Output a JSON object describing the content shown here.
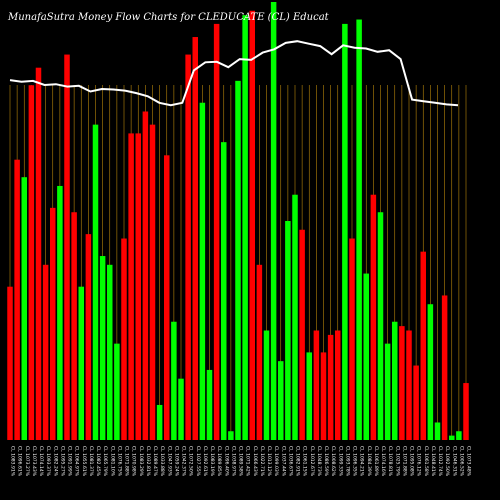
{
  "chart_data": {
    "type": "bar",
    "title": "MunafaSutra  Money Flow  Charts for CLEDUCATE                  (CL) Educat",
    "bar_colors": {
      "up": "#00ff00",
      "down": "#ff0000"
    },
    "line_color": "#ffffff",
    "gridline_color": "#b8860b",
    "background": "#000000",
    "ylim": [
      0,
      100
    ],
    "grid": "vertical",
    "categories": [
      "CL 1083.91%",
      "CL 1096.61%",
      "CL 1073.27%",
      "CL 1073.43%",
      "CL 1074.14%",
      "CL 1093.37%",
      "CL 1082.24%",
      "CL 1095.27%",
      "CL 1091.99%",
      "CL 1064.97%",
      "CL 1055.61%",
      "CL 1081.37%",
      "CL 1082.45%",
      "CL 1065.79%",
      "CL 1081.10%",
      "CL 1076.75%",
      "CL 1071.88%",
      "CL 1070.98%",
      "CL 1083.29%",
      "CL 1032.81%",
      "CL 1089.47%",
      "CL 1033.88%",
      "CL 1047.93%",
      "CL 1059.24%",
      "CL 1042.37%",
      "CL 1072.50%",
      "CL 1027.55%",
      "CL 1092.61%",
      "CL 1083.19%",
      "CL 1089.85%",
      "CL 1096.40%",
      "CL 1038.97%",
      "CL 1089.58%",
      "CL 1071.42%",
      "CL 1066.43%",
      "CL 1022.71%",
      "CL 1013.12%",
      "CL 1099.03%",
      "CL 1037.44%",
      "CL 1036.67%",
      "CL 1082.91%",
      "CL 1061.15%",
      "CL 1012.67%",
      "CL 1048.73%",
      "CL 1086.59%",
      "CL 1008.62%",
      "CL 1099.33%",
      "CL 1093.78%",
      "CL 1096.35%",
      "CL 1094.21%",
      "CL 1084.39%",
      "CL 1061.89%",
      "CL 1074.16%",
      "CL 1078.81%",
      "CL 1025.79%",
      "CL 1071.88%",
      "CL 1095.08%",
      "CL 1076.12%",
      "CL 1061.58%",
      "CL 1048.41%",
      "CL 1012.74%",
      "CL 1092.50%",
      "CL 1046.31%",
      "CL 1006.52%",
      "CL 1073.48%"
    ],
    "series": [
      {
        "values": [
          35,
          64,
          60,
          81,
          85,
          40,
          53,
          58,
          88,
          52,
          35,
          47,
          72,
          42,
          40,
          22,
          46,
          70,
          70,
          75,
          72,
          8,
          65,
          27,
          14,
          88,
          92,
          77,
          16,
          95,
          68,
          2,
          82,
          97,
          98,
          40,
          25,
          100,
          18,
          50,
          56,
          48,
          20,
          25,
          20,
          24,
          25,
          95,
          46,
          96,
          38,
          56,
          52,
          22,
          27,
          26,
          25,
          17,
          43,
          31,
          4,
          33,
          1,
          2,
          13
        ],
        "colors": [
          "down",
          "down",
          "up",
          "down",
          "down",
          "down",
          "down",
          "up",
          "down",
          "down",
          "up",
          "down",
          "up",
          "up",
          "up",
          "up",
          "down",
          "down",
          "down",
          "down",
          "down",
          "up",
          "down",
          "up",
          "up",
          "down",
          "down",
          "up",
          "up",
          "down",
          "up",
          "up",
          "up",
          "up",
          "down",
          "down",
          "up",
          "up",
          "up",
          "up",
          "up",
          "down",
          "up",
          "down",
          "down",
          "down",
          "down",
          "up",
          "down",
          "up",
          "up",
          "down",
          "up",
          "up",
          "up",
          "down",
          "down",
          "down",
          "down",
          "up",
          "up",
          "down",
          "up",
          "up",
          "down"
        ]
      }
    ],
    "line": {
      "y_domain": [
        0,
        100
      ],
      "values": [
        74,
        73,
        73.5,
        71,
        71.5,
        70,
        70.5,
        67,
        68.5,
        68.2,
        67.5,
        66,
        64,
        60,
        58.5,
        60,
        80,
        85,
        85.3,
        82,
        87,
        86.5,
        91,
        93,
        97,
        98,
        96.5,
        95,
        90,
        95.5,
        94,
        93.5,
        91.5,
        92.5,
        87,
        62,
        61,
        60,
        59,
        58.5
      ]
    },
    "xlabel": "",
    "ylabel": ""
  }
}
